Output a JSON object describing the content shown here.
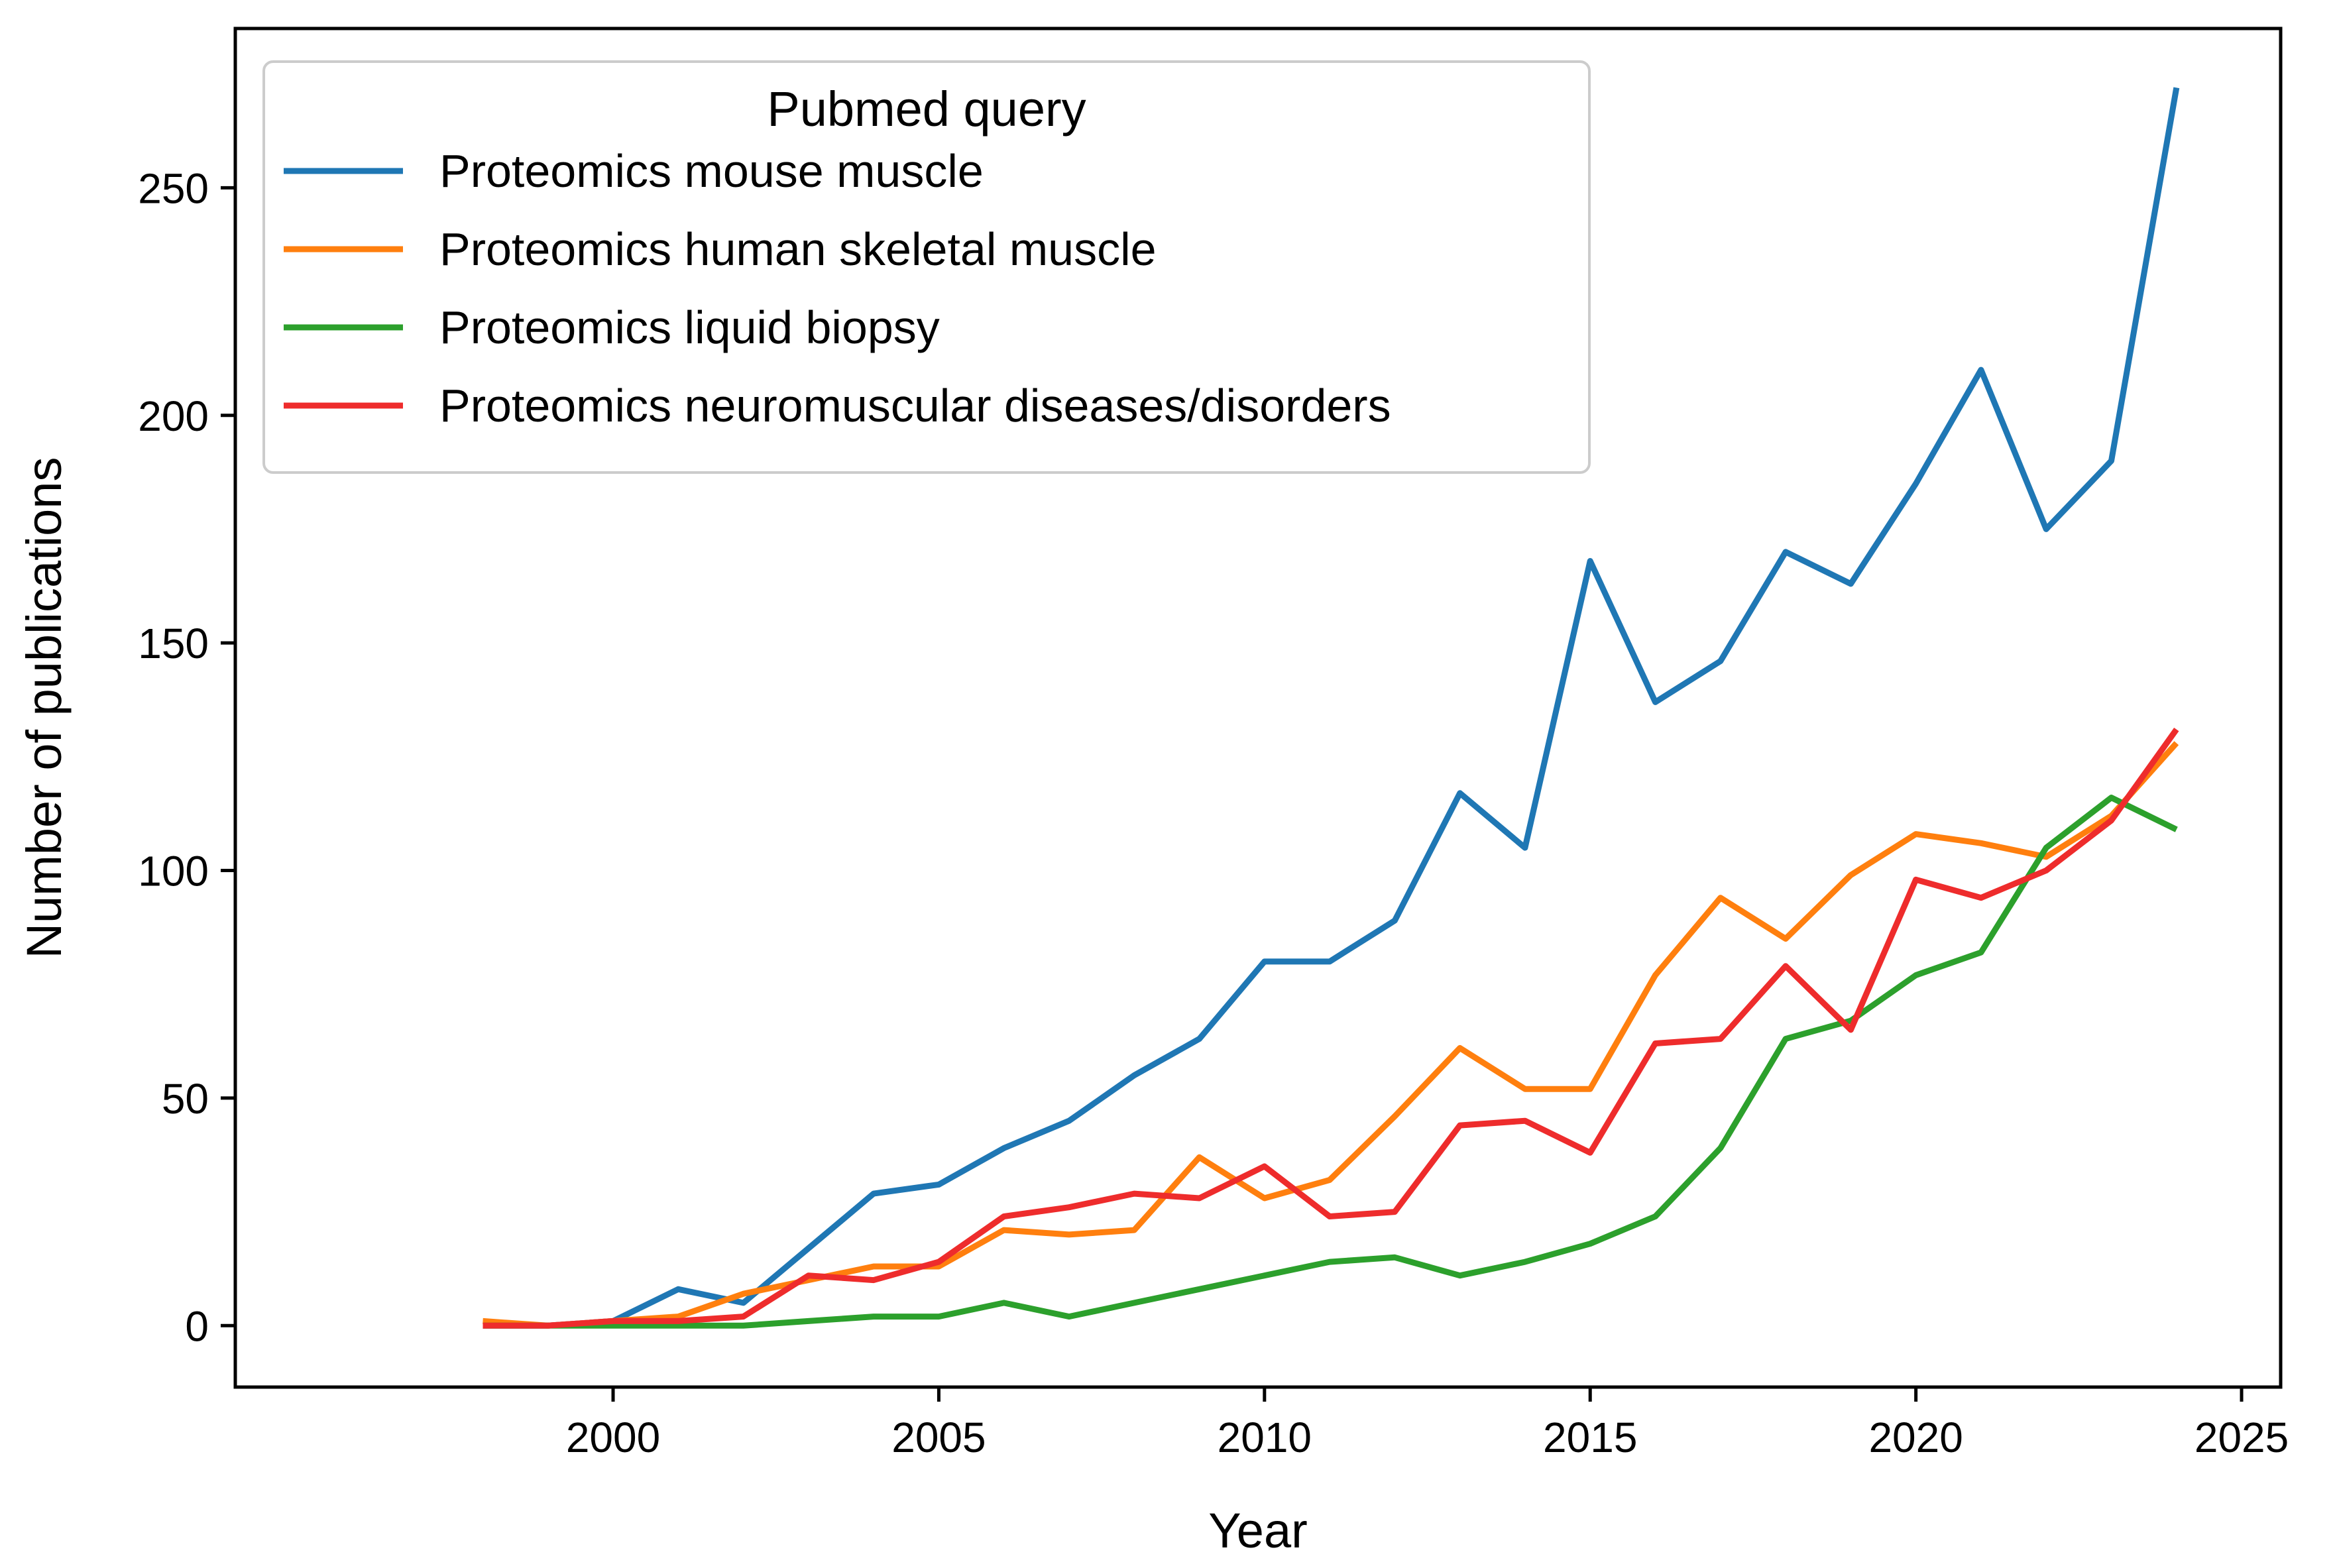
{
  "chart_data": {
    "type": "line",
    "title": "",
    "xlabel": "Year",
    "ylabel": "Number of publications",
    "xlim": [
      1994.2,
      2025.6
    ],
    "ylim": [
      -13.5,
      285
    ],
    "xticks": [
      2000,
      2005,
      2010,
      2015,
      2020,
      2025
    ],
    "yticks": [
      0,
      50,
      100,
      150,
      200,
      250
    ],
    "grid": false,
    "legend": {
      "title": "Pubmed query",
      "position": "top-left"
    },
    "x": [
      1998,
      1999,
      2000,
      2001,
      2002,
      2003,
      2004,
      2005,
      2006,
      2007,
      2008,
      2009,
      2010,
      2011,
      2012,
      2013,
      2014,
      2015,
      2016,
      2017,
      2018,
      2019,
      2020,
      2021,
      2022,
      2023,
      2024
    ],
    "series": [
      {
        "name": "Proteomics mouse muscle",
        "color": "#1f77b4",
        "values": [
          0,
          0,
          1,
          8,
          5,
          17,
          29,
          31,
          39,
          45,
          55,
          63,
          80,
          80,
          89,
          117,
          105,
          168,
          137,
          146,
          170,
          163,
          185,
          210,
          175,
          190,
          272
        ]
      },
      {
        "name": "Proteomics human skeletal muscle",
        "color": "#ff7f0e",
        "values": [
          1,
          0,
          1,
          2,
          7,
          10,
          13,
          13,
          21,
          20,
          21,
          37,
          28,
          32,
          46,
          61,
          52,
          52,
          77,
          94,
          85,
          99,
          108,
          106,
          103,
          112,
          128
        ]
      },
      {
        "name": "Proteomics liquid biopsy",
        "color": "#2ca02c",
        "values": [
          0,
          0,
          0,
          0,
          0,
          1,
          2,
          2,
          5,
          2,
          5,
          8,
          11,
          14,
          15,
          11,
          14,
          18,
          24,
          39,
          63,
          67,
          77,
          82,
          105,
          116,
          109
        ]
      },
      {
        "name": "Proteomics neuromuscular diseases/disorders",
        "color": "#ee2c2c",
        "values": [
          0,
          0,
          1,
          1,
          2,
          11,
          10,
          14,
          24,
          26,
          29,
          28,
          35,
          24,
          25,
          44,
          45,
          38,
          62,
          63,
          79,
          65,
          98,
          94,
          100,
          111,
          131
        ]
      }
    ]
  }
}
